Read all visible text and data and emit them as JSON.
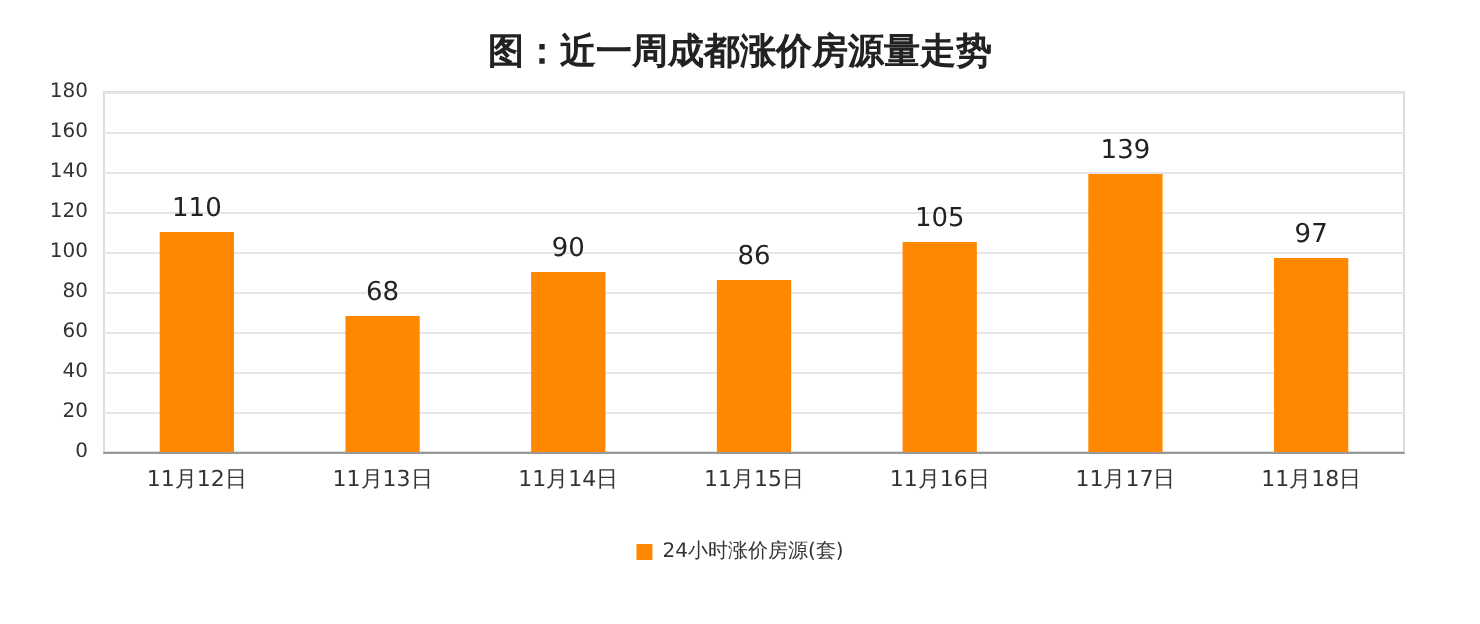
{
  "chart_data": {
    "type": "bar",
    "title": "图：近一周成都涨价房源量走势",
    "categories": [
      "11月12日",
      "11月13日",
      "11月14日",
      "11月15日",
      "11月16日",
      "11月17日",
      "11月18日"
    ],
    "series": [
      {
        "name": "24小时涨价房源(套)",
        "color": "#ff8800",
        "values": [
          110,
          68,
          90,
          86,
          105,
          139,
          97
        ]
      }
    ],
    "ylim": [
      0,
      180
    ],
    "yticks": [
      0,
      20,
      40,
      60,
      80,
      100,
      120,
      140,
      160,
      180
    ],
    "grid": "y",
    "legend": "bottom",
    "data_labels": true
  }
}
